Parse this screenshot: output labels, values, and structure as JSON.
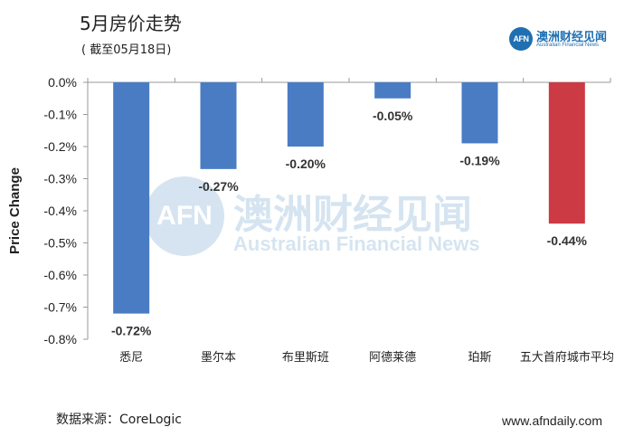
{
  "header": {
    "title": "5月房价走势",
    "subtitle": "( 截至05月18日)"
  },
  "brand": {
    "logo_text": "AFN",
    "name_cn": "澳洲财经见闻",
    "name_en": "Australian Financial News"
  },
  "watermark": {
    "logo_text": "AFN",
    "name_cn": "澳洲财经见闻",
    "name_en": "Australian Financial News"
  },
  "footer": {
    "source": "数据来源：CoreLogic",
    "website": "www.afndaily.com"
  },
  "colors": {
    "bar": "#4a7cc4",
    "highlight": "#cc3a44",
    "brand": "#1f6fb2"
  },
  "chart_data": {
    "type": "bar",
    "title": "5月房价走势",
    "xlabel": "",
    "ylabel": "Price Change",
    "ylim": [
      -0.8,
      0.0
    ],
    "yticks": [
      0.0,
      -0.1,
      -0.2,
      -0.3,
      -0.4,
      -0.5,
      -0.6,
      -0.7,
      -0.8
    ],
    "ytick_labels": [
      "0.0%",
      "-0.1%",
      "-0.2%",
      "-0.3%",
      "-0.4%",
      "-0.5%",
      "-0.6%",
      "-0.7%",
      "-0.8%"
    ],
    "categories": [
      "悉尼",
      "墨尔本",
      "布里斯班",
      "阿德莱德",
      "珀斯",
      "五大首府城市平均"
    ],
    "values": [
      -0.72,
      -0.27,
      -0.2,
      -0.05,
      -0.19,
      -0.44
    ],
    "data_labels": [
      "-0.72%",
      "-0.27%",
      "-0.20%",
      "-0.05%",
      "-0.19%",
      "-0.44%"
    ],
    "highlight_index": 5,
    "grid": false
  }
}
